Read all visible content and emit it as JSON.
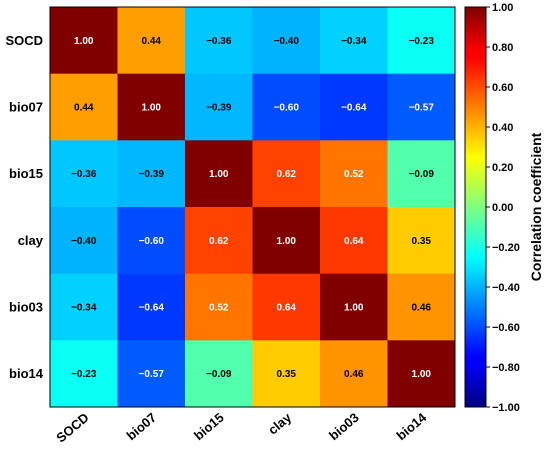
{
  "chart_data": {
    "type": "heatmap",
    "title": "",
    "xlabel": "",
    "ylabel": "",
    "variables": [
      "SOCD",
      "bio07",
      "bio15",
      "clay",
      "bio03",
      "bio14"
    ],
    "matrix": [
      [
        1.0,
        0.44,
        -0.36,
        -0.4,
        -0.34,
        -0.23
      ],
      [
        0.44,
        1.0,
        -0.39,
        -0.6,
        -0.64,
        -0.57
      ],
      [
        -0.36,
        -0.39,
        1.0,
        0.62,
        0.52,
        -0.09
      ],
      [
        -0.4,
        -0.6,
        0.62,
        1.0,
        0.64,
        0.35
      ],
      [
        -0.34,
        -0.64,
        0.52,
        0.64,
        1.0,
        0.46
      ],
      [
        -0.23,
        -0.57,
        -0.09,
        0.35,
        0.46,
        1.0
      ]
    ],
    "value_labels": [
      [
        "1.00",
        "0.44",
        "−0.36",
        "−0.40",
        "−0.34",
        "−0.23"
      ],
      [
        "0.44",
        "1.00",
        "−0.39",
        "−0.60",
        "−0.64",
        "−0.57"
      ],
      [
        "−0.36",
        "−0.39",
        "1.00",
        "0.62",
        "0.52",
        "−0.09"
      ],
      [
        "−0.40",
        "−0.60",
        "0.62",
        "1.00",
        "0.64",
        "0.35"
      ],
      [
        "−0.34",
        "−0.64",
        "0.52",
        "0.64",
        "1.00",
        "0.46"
      ],
      [
        "−0.23",
        "−0.57",
        "−0.09",
        "0.35",
        "0.46",
        "1.00"
      ]
    ],
    "colorscale": "jet",
    "colorbar": {
      "title": "Correlation coefficient",
      "range": [
        -1.0,
        1.0
      ],
      "ticks": [
        -1.0,
        -0.8,
        -0.6,
        -0.4,
        -0.2,
        0.0,
        0.2,
        0.4,
        0.6,
        0.8,
        1.0
      ],
      "tick_labels": [
        "−1.00",
        "−0.80",
        "−0.60",
        "−0.40",
        "−0.20",
        "0.00",
        "0.20",
        "0.40",
        "0.60",
        "0.80",
        "1.00"
      ]
    },
    "grid": false,
    "legend": "right"
  }
}
